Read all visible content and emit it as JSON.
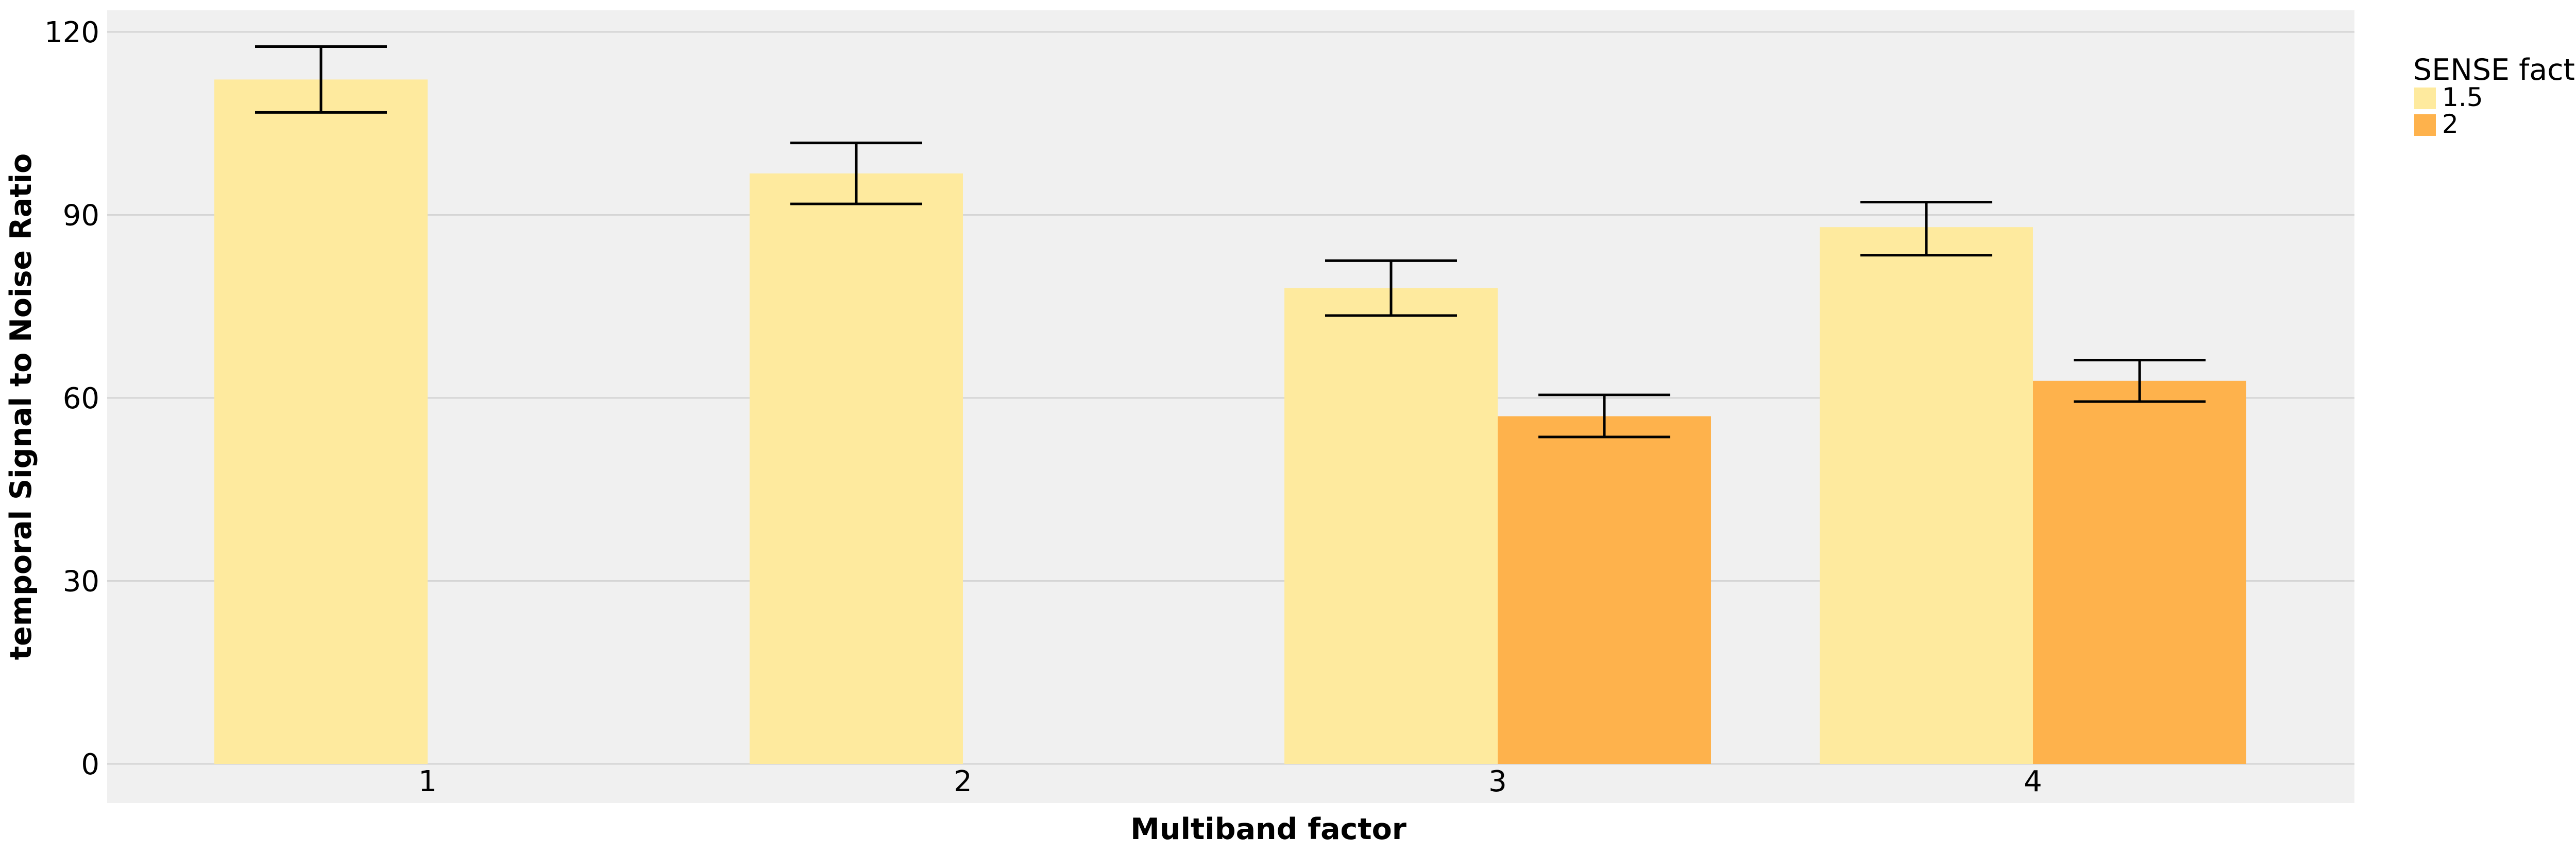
{
  "chart_data": {
    "type": "bar",
    "xlabel": "Multiband factor",
    "ylabel": "temporal Signal to Noise Ratio",
    "ylim": [
      0,
      123.5
    ],
    "yticks": [
      0,
      30,
      60,
      90,
      120
    ],
    "grid": true,
    "categories": [
      "1",
      "2",
      "3",
      "4"
    ],
    "legend": {
      "title": "SENSE factor",
      "placement": "right"
    },
    "series": [
      {
        "name": "1.5",
        "color": "#FEEA9E",
        "values": [
          112.2,
          96.8,
          78.0,
          88.0
        ],
        "error_low": [
          106.8,
          91.8,
          73.5,
          83.4
        ],
        "error_high": [
          117.6,
          101.8,
          82.5,
          92.1
        ]
      },
      {
        "name": "2",
        "color": "#FEB24C",
        "values": [
          null,
          null,
          57.0,
          62.8
        ],
        "error_low": [
          null,
          null,
          53.6,
          59.4
        ],
        "error_high": [
          null,
          null,
          60.5,
          66.2
        ]
      }
    ],
    "colors": {
      "panel_background": "#F0F0F0",
      "gridline": "#D5D5D5",
      "error_bar": "#000000"
    }
  }
}
